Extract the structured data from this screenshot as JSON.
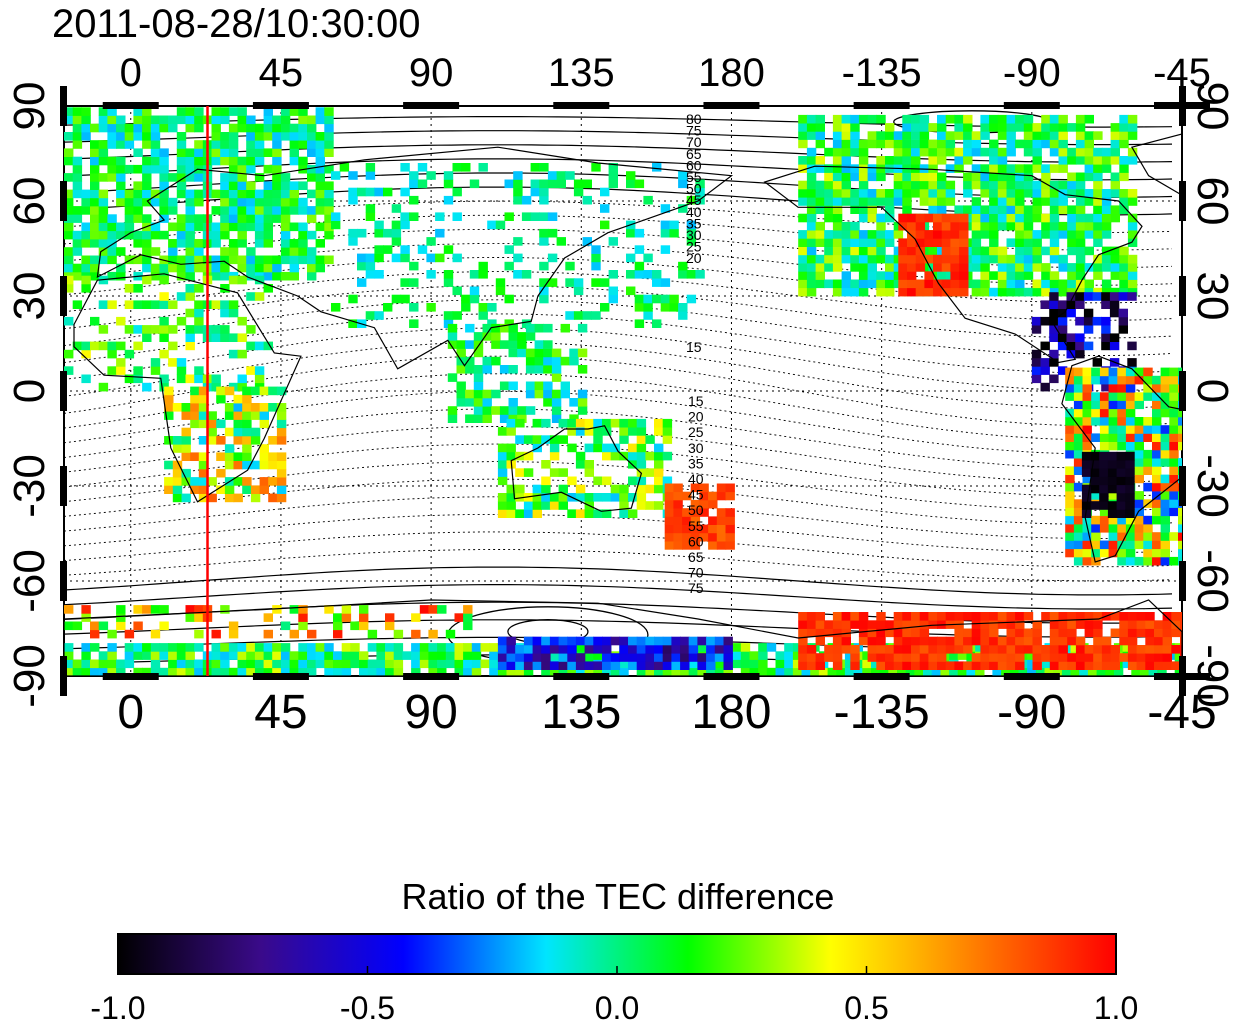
{
  "title": "2011-08-28/10:30:00",
  "colorbar": {
    "title": "Ratio of the TEC difference",
    "ticks": [
      "-1.0",
      "-0.5",
      "0.0",
      "0.5",
      "1.0"
    ],
    "tick_values": [
      -1.0,
      -0.5,
      0.0,
      0.5,
      1.0
    ],
    "stops": [
      "#000000",
      "#3a0a8a",
      "#0000ff",
      "#00e5ff",
      "#00ff00",
      "#ffff00",
      "#ff7f00",
      "#ff0000"
    ]
  },
  "map": {
    "lon_ticks_top": [
      "0",
      "45",
      "90",
      "135",
      "180",
      "-135",
      "-90",
      "-45"
    ],
    "lon_ticks_bottom": [
      "0",
      "45",
      "90",
      "135",
      "180",
      "-135",
      "-90",
      "-45"
    ],
    "lon_tick_values": [
      0,
      45,
      90,
      135,
      180,
      225,
      270,
      315
    ],
    "lat_ticks_left": [
      "90",
      "60",
      "30",
      "0",
      "-30",
      "-60",
      "-90"
    ],
    "lat_ticks_right": [
      "90",
      "60",
      "30",
      "0",
      "-30",
      "-60",
      "-90"
    ],
    "lat_tick_values": [
      90,
      60,
      30,
      0,
      -30,
      -60,
      -90
    ],
    "lon_range": [
      -20,
      315
    ],
    "lat_range": [
      -90,
      90
    ],
    "contour_labels_north": [
      "80",
      "75",
      "70",
      "65",
      "60",
      "55",
      "50",
      "45",
      "40",
      "35",
      "30",
      "25",
      "20",
      "15"
    ],
    "contour_labels_south": [
      "15",
      "20",
      "25",
      "30",
      "35",
      "40",
      "45",
      "50",
      "55",
      "60",
      "65",
      "70",
      "75"
    ],
    "terminator_lon": 23
  }
}
